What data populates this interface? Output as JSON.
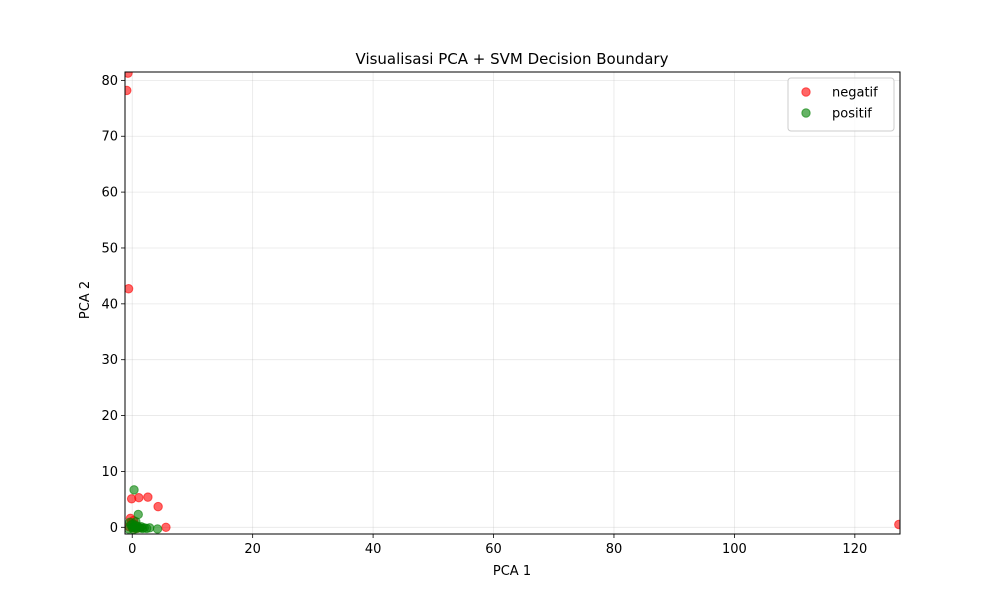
{
  "chart_data": {
    "type": "scatter",
    "title": "Visualisasi PCA + SVM Decision Boundary",
    "xlabel": "PCA 1",
    "ylabel": "PCA 2",
    "xlim": [
      -1.2,
      127.5
    ],
    "ylim": [
      -1.2,
      81.5
    ],
    "xticks": [
      0,
      20,
      40,
      60,
      80,
      100,
      120
    ],
    "yticks": [
      0,
      10,
      20,
      30,
      40,
      50,
      60,
      70,
      80
    ],
    "grid": true,
    "legend_position": "top-right",
    "series": [
      {
        "name": "negatif",
        "color": "#ff0000",
        "points": [
          [
            -0.7,
            81.3
          ],
          [
            -0.9,
            78.2
          ],
          [
            -0.6,
            42.7
          ],
          [
            -0.1,
            5.1
          ],
          [
            1.1,
            5.3
          ],
          [
            2.6,
            5.4
          ],
          [
            4.3,
            3.7
          ],
          [
            5.6,
            0.0
          ],
          [
            -0.3,
            1.6
          ],
          [
            0.2,
            1.2
          ],
          [
            -0.2,
            0.8
          ],
          [
            0.4,
            0.5
          ],
          [
            -0.5,
            0.1
          ],
          [
            0.0,
            -0.1
          ],
          [
            0.6,
            -0.2
          ],
          [
            1.2,
            -0.1
          ],
          [
            127.3,
            0.5
          ]
        ]
      },
      {
        "name": "positif",
        "color": "#008000",
        "points": [
          [
            0.3,
            6.7
          ],
          [
            1.0,
            2.3
          ],
          [
            -0.4,
            0.9
          ],
          [
            0.1,
            0.6
          ],
          [
            0.5,
            0.3
          ],
          [
            0.9,
            0.2
          ],
          [
            -0.2,
            0.4
          ],
          [
            0.0,
            0.0
          ],
          [
            0.4,
            -0.1
          ],
          [
            0.8,
            -0.2
          ],
          [
            1.3,
            -0.1
          ],
          [
            1.7,
            -0.2
          ],
          [
            2.0,
            -0.1
          ],
          [
            2.4,
            -0.2
          ],
          [
            2.9,
            -0.1
          ],
          [
            4.2,
            -0.3
          ],
          [
            -0.6,
            -0.3
          ],
          [
            0.2,
            -0.4
          ],
          [
            1.5,
            0.1
          ],
          [
            0.6,
            1.0
          ]
        ]
      }
    ]
  }
}
